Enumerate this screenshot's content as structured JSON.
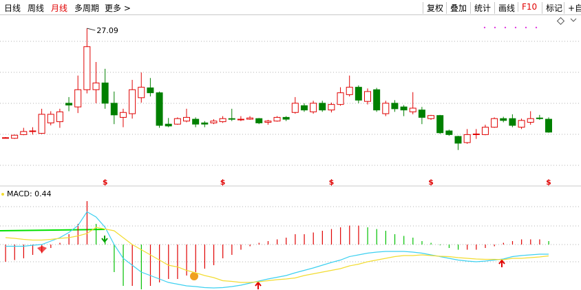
{
  "toolbar": {
    "periods": [
      {
        "label": "日线"
      },
      {
        "label": "周线"
      },
      {
        "label": "月线",
        "active": true
      },
      {
        "label": "多周期"
      },
      {
        "label": "更多 >"
      }
    ],
    "buttons": [
      {
        "label": "复权"
      },
      {
        "label": "叠加"
      },
      {
        "label": "统计"
      },
      {
        "label": "画线"
      },
      {
        "label": "F10",
        "active": true
      },
      {
        "label": "标记"
      },
      {
        "label": "+自"
      }
    ]
  },
  "chart_data": [
    {
      "type": "candlestick",
      "high_label": "27.09",
      "dividend_label": "$",
      "up_color": "#e00000",
      "down_color": "#008000",
      "ylim": [
        2,
        29
      ],
      "open": [
        9.3,
        9.2,
        9.8,
        10.3,
        10.0,
        11.7,
        11.9,
        14.9,
        14.3,
        17.1,
        17.1,
        18.2,
        14.9,
        12.6,
        13.2,
        15.8,
        17.4,
        16.6,
        11.5,
        11.5,
        12.0,
        12.3,
        11.7,
        11.7,
        11.9,
        12.4,
        12.3,
        12.3,
        12.4,
        11.8,
        12.0,
        12.6,
        13.4,
        14.5,
        13.5,
        14.9,
        13.8,
        14.7,
        16.3,
        17.5,
        15.2,
        17.1,
        13.2,
        14.9,
        14.3,
        13.5,
        13.8,
        12.4,
        12.9,
        10.4,
        9.5,
        8.5,
        9.8,
        9.8,
        11.0,
        12.4,
        12.4,
        11.0,
        11.8,
        12.5,
        12.3
      ],
      "close": [
        9.3,
        9.7,
        10.3,
        10.4,
        13.1,
        13.1,
        13.5,
        14.6,
        17.1,
        24.1,
        18.2,
        14.9,
        13.0,
        13.4,
        17.1,
        17.5,
        16.6,
        11.3,
        11.2,
        12.4,
        12.6,
        11.5,
        11.5,
        12.0,
        12.4,
        12.3,
        12.3,
        12.5,
        11.7,
        12.0,
        12.6,
        12.3,
        14.9,
        13.8,
        14.9,
        13.8,
        14.7,
        16.6,
        17.5,
        15.4,
        16.8,
        13.8,
        14.9,
        14.0,
        13.8,
        14.1,
        12.6,
        12.9,
        10.1,
        9.8,
        8.4,
        9.8,
        9.9,
        11.0,
        12.4,
        12.1,
        11.3,
        12.1,
        12.4,
        12.4,
        10.2
      ],
      "high": [
        9.4,
        9.8,
        10.9,
        11.0,
        14.0,
        13.6,
        14.0,
        15.9,
        19.4,
        27.09,
        21.6,
        20.5,
        16.8,
        14.0,
        18.7,
        19.9,
        19.0,
        16.8,
        12.5,
        12.6,
        14.0,
        12.6,
        12.0,
        12.3,
        12.8,
        14.0,
        12.8,
        12.8,
        12.5,
        12.2,
        12.8,
        12.8,
        15.9,
        14.9,
        15.3,
        15.3,
        15.0,
        17.5,
        19.4,
        17.8,
        17.3,
        17.4,
        15.3,
        15.4,
        14.6,
        16.7,
        14.3,
        13.0,
        13.0,
        10.6,
        9.6,
        10.7,
        10.7,
        11.4,
        12.6,
        12.7,
        13.1,
        12.4,
        13.6,
        13.0,
        12.6
      ],
      "low": [
        9.2,
        9.1,
        9.7,
        9.8,
        9.9,
        11.3,
        10.9,
        13.6,
        13.3,
        16.5,
        14.9,
        14.0,
        11.5,
        11.0,
        12.4,
        15.0,
        16.0,
        10.9,
        11.0,
        11.4,
        11.8,
        11.0,
        11.0,
        11.5,
        11.7,
        12.0,
        12.0,
        12.2,
        11.5,
        11.4,
        11.9,
        12.0,
        13.2,
        13.5,
        13.2,
        13.5,
        13.4,
        14.5,
        16.0,
        14.9,
        14.7,
        13.5,
        12.8,
        13.5,
        12.8,
        13.1,
        11.5,
        12.2,
        9.9,
        9.6,
        7.3,
        8.3,
        9.1,
        9.7,
        10.9,
        11.8,
        11.0,
        10.7,
        11.4,
        12.2,
        10.1
      ]
    },
    {
      "type": "macd",
      "title": "MACD: 0.44",
      "ylim": [
        -1.3,
        1.3
      ],
      "hist_up_color": "#e00000",
      "hist_down_color": "#00c000",
      "hist": [
        -0.5,
        -0.45,
        -0.4,
        -0.3,
        -0.25,
        -0.1,
        0.05,
        0.3,
        0.6,
        1.26,
        0.6,
        0.1,
        -0.8,
        -1.2,
        -1.2,
        -1.3,
        -1.2,
        -1.1,
        -1.0,
        -1.0,
        -0.9,
        -0.8,
        -0.7,
        -0.6,
        -0.4,
        -0.3,
        -0.15,
        -0.05,
        0.05,
        0.1,
        0.15,
        0.2,
        0.3,
        0.3,
        0.35,
        0.4,
        0.45,
        0.5,
        0.55,
        0.55,
        0.5,
        0.45,
        0.4,
        0.3,
        0.25,
        0.2,
        0.1,
        0.05,
        -0.02,
        -0.1,
        -0.15,
        -0.15,
        -0.15,
        -0.1,
        -0.05,
        0.05,
        0.1,
        0.15,
        0.15,
        0.15,
        0.1
      ],
      "series": [
        {
          "color": "#3cd0f0",
          "values": [
            -0.05,
            -0.05,
            -0.05,
            -0.02,
            0.0,
            0.1,
            0.2,
            0.35,
            0.55,
            0.95,
            0.8,
            0.5,
            0.0,
            -0.4,
            -0.6,
            -0.8,
            -0.9,
            -1.0,
            -1.1,
            -1.15,
            -1.2,
            -1.22,
            -1.25,
            -1.26,
            -1.25,
            -1.22,
            -1.18,
            -1.12,
            -1.06,
            -1.0,
            -0.95,
            -0.9,
            -0.82,
            -0.75,
            -0.68,
            -0.6,
            -0.52,
            -0.45,
            -0.35,
            -0.3,
            -0.25,
            -0.22,
            -0.2,
            -0.2,
            -0.2,
            -0.22,
            -0.25,
            -0.3,
            -0.35,
            -0.4,
            -0.45,
            -0.48,
            -0.5,
            -0.48,
            -0.45,
            -0.42,
            -0.35,
            -0.32,
            -0.3,
            -0.28,
            -0.28
          ]
        },
        {
          "color": "#f2dc30",
          "values": [
            0.2,
            0.18,
            0.15,
            0.13,
            0.13,
            0.15,
            0.18,
            0.2,
            0.25,
            0.32,
            0.5,
            0.45,
            0.4,
            0.2,
            0.0,
            -0.15,
            -0.3,
            -0.45,
            -0.6,
            -0.65,
            -0.75,
            -0.82,
            -0.9,
            -0.96,
            -1.05,
            -1.07,
            -1.1,
            -1.1,
            -1.08,
            -1.05,
            -1.02,
            -1.0,
            -0.97,
            -0.9,
            -0.85,
            -0.8,
            -0.75,
            -0.7,
            -0.62,
            -0.57,
            -0.5,
            -0.45,
            -0.4,
            -0.35,
            -0.32,
            -0.32,
            -0.3,
            -0.32,
            -0.34,
            -0.35,
            -0.38,
            -0.4,
            -0.42,
            -0.43,
            -0.43,
            -0.44,
            -0.4,
            -0.4,
            -0.38,
            -0.36,
            -0.33
          ]
        }
      ]
    }
  ]
}
